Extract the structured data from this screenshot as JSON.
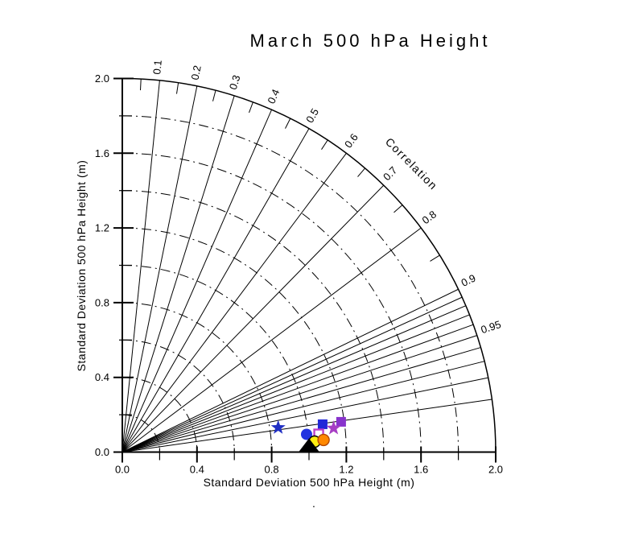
{
  "chart_data": {
    "type": "taylor_diagram",
    "title": "March 500 hPa Height",
    "xlabel": "Standard Deviation 500 hPa Height (m)",
    "ylabel": "Standard Deviation 500 hPa Height (m)",
    "correlation_axis_label": "Correlation",
    "axis_range": [
      0.0,
      2.0
    ],
    "axis_major_ticks": [
      0.0,
      0.4,
      0.8,
      1.2,
      1.6,
      2.0
    ],
    "axis_major_tick_labels": [
      "0.0",
      "0.4",
      "0.8",
      "1.2",
      "1.6",
      "2.0"
    ],
    "axis_minor_ticks": [
      0.2,
      0.6,
      1.0,
      1.4,
      1.8
    ],
    "std_dev_arcs": [
      0.2,
      0.4,
      0.6,
      0.8,
      1.0,
      1.2,
      1.4,
      1.6,
      1.8
    ],
    "outer_arc_radius": 2.0,
    "grid_style": "dash-dot",
    "correlation_radial_lines": [
      0.1,
      0.2,
      0.3,
      0.4,
      0.5,
      0.6,
      0.7,
      0.8,
      0.9
    ],
    "correlation_fine_lines": [
      0.91,
      0.92,
      0.93,
      0.94,
      0.95,
      0.96,
      0.97,
      0.98,
      0.99
    ],
    "correlation_arc_minor_ticks": [
      0.05,
      0.15,
      0.25,
      0.35,
      0.45,
      0.55,
      0.65,
      0.75,
      0.85
    ],
    "correlation_labels": [
      {
        "value": 0.1,
        "label": "0.1"
      },
      {
        "value": 0.2,
        "label": "0.2"
      },
      {
        "value": 0.3,
        "label": "0.3"
      },
      {
        "value": 0.4,
        "label": "0.4"
      },
      {
        "value": 0.5,
        "label": "0.5"
      },
      {
        "value": 0.6,
        "label": "0.6"
      },
      {
        "value": 0.7,
        "label": "0.7"
      },
      {
        "value": 0.8,
        "label": "0.8"
      },
      {
        "value": 0.9,
        "label": "0.9"
      },
      {
        "value": 0.95,
        "label": "0.95"
      }
    ],
    "reference": {
      "name": "reference-point-black-triangle",
      "shape": "triangle-up",
      "color": "#000000",
      "std_dev": 1.0,
      "correlation": 1.0,
      "x": 1.0,
      "y": 0.0
    },
    "points": [
      {
        "name": "model-point-blue-star",
        "shape": "star",
        "color": "#2130c4",
        "x": 0.835,
        "y": 0.131,
        "std_dev": 0.85,
        "correlation": 0.988
      },
      {
        "name": "model-point-blue-square",
        "shape": "square",
        "color": "#2228d8",
        "x": 1.073,
        "y": 0.149,
        "std_dev": 1.08,
        "correlation": 0.99
      },
      {
        "name": "model-point-purple-square",
        "shape": "square",
        "color": "#8833cc",
        "x": 1.172,
        "y": 0.162,
        "std_dev": 1.18,
        "correlation": 0.991
      },
      {
        "name": "model-point-magenta-star",
        "shape": "star",
        "color": "#a73fc4",
        "x": 1.132,
        "y": 0.128,
        "std_dev": 1.14,
        "correlation": 0.994
      },
      {
        "name": "model-point-blue-circle",
        "shape": "circle",
        "color": "#2233e0",
        "x": 0.987,
        "y": 0.095,
        "std_dev": 0.99,
        "correlation": 0.995
      },
      {
        "name": "model-point-magenta-open-square",
        "shape": "open-square",
        "color": "#c040c8",
        "x": 1.052,
        "y": 0.097,
        "std_dev": 1.06,
        "correlation": 0.996
      },
      {
        "name": "model-point-yellow-circle",
        "shape": "circle",
        "color": "#ffee11",
        "stroke": "#000000",
        "x": 1.03,
        "y": 0.056,
        "std_dev": 1.03,
        "correlation": 0.999
      },
      {
        "name": "model-point-orange-circle",
        "shape": "circle",
        "color": "#ff8800",
        "stroke": "#b34700",
        "x": 1.078,
        "y": 0.065,
        "std_dev": 1.08,
        "correlation": 0.998
      }
    ],
    "annotations": [
      {
        "name": "stray-period",
        "text": "."
      }
    ],
    "line_color": "#000000",
    "background_color": "#ffffff"
  }
}
